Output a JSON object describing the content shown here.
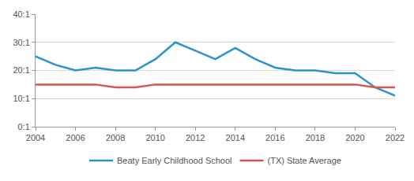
{
  "chart_data": {
    "type": "line",
    "x": [
      2004,
      2005,
      2006,
      2007,
      2008,
      2009,
      2010,
      2011,
      2012,
      2013,
      2014,
      2015,
      2016,
      2017,
      2018,
      2019,
      2020,
      2021,
      2022
    ],
    "series": [
      {
        "name": "Beaty Early Childhood School",
        "color": "#2b93cc",
        "values": [
          25,
          22,
          20,
          21,
          20,
          20,
          24,
          30,
          27,
          24,
          28,
          24,
          21,
          20,
          20,
          19,
          19,
          14,
          11
        ]
      },
      {
        "name": "(TX) State Average",
        "color": "#d9534f",
        "values": [
          15,
          15,
          15,
          15,
          14,
          14,
          15,
          15,
          15,
          15,
          15,
          15,
          15,
          15,
          15,
          15,
          15,
          14,
          14
        ]
      }
    ],
    "xlim": [
      2004,
      2022
    ],
    "xticks": [
      2004,
      2006,
      2008,
      2010,
      2012,
      2014,
      2016,
      2018,
      2020,
      2022
    ],
    "ylim": [
      0,
      40
    ],
    "yticks": [
      {
        "value": 0,
        "label": "0:1"
      },
      {
        "value": 10,
        "label": "10:1"
      },
      {
        "value": 20,
        "label": "20:1"
      },
      {
        "value": 30,
        "label": "30:1"
      },
      {
        "value": 40,
        "label": "40:1"
      }
    ],
    "grid": true,
    "legend": "bottom"
  }
}
